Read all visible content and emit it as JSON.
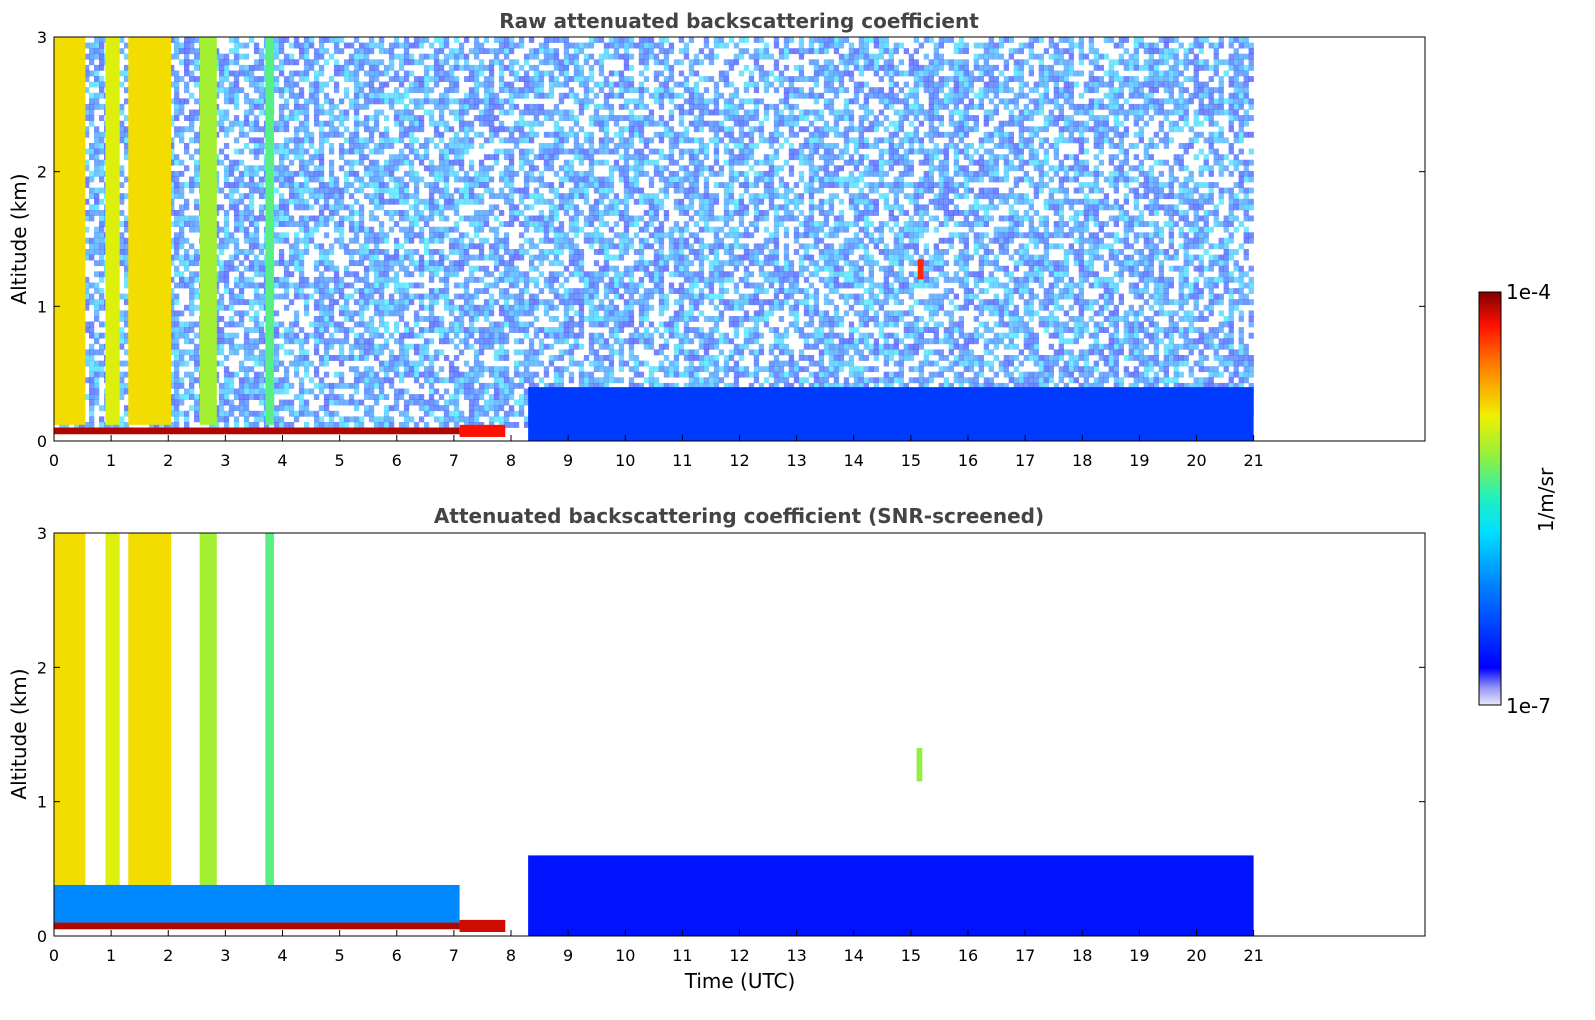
{
  "chart_data": [
    {
      "type": "heatmap",
      "id": "raw",
      "title": "Raw attenuated backscattering coefficient",
      "xlabel": "",
      "ylabel": "Altitude (km)",
      "xlim": [
        0,
        24
      ],
      "ylim": [
        0,
        3
      ],
      "xticks": [
        "0",
        "1",
        "2",
        "3",
        "4",
        "5",
        "6",
        "7",
        "8",
        "9",
        "10",
        "11",
        "12",
        "13",
        "14",
        "15",
        "16",
        "17",
        "18",
        "19",
        "20",
        "21"
      ],
      "yticks": [
        "0",
        "1",
        "2",
        "3"
      ],
      "data_extent_hours": 21,
      "regions": [
        {
          "x": [
            0,
            0.55
          ],
          "y": [
            0.12,
            3
          ],
          "level": 0.72
        },
        {
          "x": [
            0.9,
            1.15
          ],
          "y": [
            0.12,
            3
          ],
          "level": 0.68
        },
        {
          "x": [
            1.3,
            2.05
          ],
          "y": [
            0.12,
            3
          ],
          "level": 0.72
        },
        {
          "x": [
            2.55,
            2.85
          ],
          "y": [
            0.12,
            3
          ],
          "level": 0.62
        },
        {
          "x": [
            3.7,
            3.85
          ],
          "y": [
            0.12,
            3
          ],
          "level": 0.55
        },
        {
          "x": [
            0,
            7.1
          ],
          "y": [
            0.05,
            0.1
          ],
          "level": 0.97
        },
        {
          "x": [
            7.1,
            7.9
          ],
          "y": [
            0.03,
            0.12
          ],
          "level": 0.92
        },
        {
          "x": [
            8.3,
            21
          ],
          "y": [
            0,
            0.4
          ],
          "level": 0.18
        },
        {
          "x": [
            15.12,
            15.22
          ],
          "y": [
            1.2,
            1.35
          ],
          "level": 0.9
        }
      ],
      "noise_region": {
        "x": [
          0,
          21
        ],
        "y": [
          0.1,
          3
        ]
      }
    },
    {
      "type": "heatmap",
      "id": "screened",
      "title": "Attenuated backscattering coefficient (SNR-screened)",
      "xlabel": "Time (UTC)",
      "ylabel": "Altitude (km)",
      "xlim": [
        0,
        24
      ],
      "ylim": [
        0,
        3
      ],
      "xticks": [
        "0",
        "1",
        "2",
        "3",
        "4",
        "5",
        "6",
        "7",
        "8",
        "9",
        "10",
        "11",
        "12",
        "13",
        "14",
        "15",
        "16",
        "17",
        "18",
        "19",
        "20",
        "21"
      ],
      "yticks": [
        "0",
        "1",
        "2",
        "3"
      ],
      "data_extent_hours": 21,
      "regions": [
        {
          "x": [
            0,
            0.55
          ],
          "y": [
            0.12,
            3
          ],
          "level": 0.72
        },
        {
          "x": [
            0.9,
            1.15
          ],
          "y": [
            0.12,
            3
          ],
          "level": 0.68
        },
        {
          "x": [
            1.3,
            2.05
          ],
          "y": [
            0.12,
            3
          ],
          "level": 0.72
        },
        {
          "x": [
            2.55,
            2.85
          ],
          "y": [
            0.12,
            3
          ],
          "level": 0.62
        },
        {
          "x": [
            3.7,
            3.85
          ],
          "y": [
            0.12,
            3
          ],
          "level": 0.55
        },
        {
          "x": [
            0,
            7.1
          ],
          "y": [
            0.1,
            0.38
          ],
          "level": 0.3
        },
        {
          "x": [
            0,
            7.1
          ],
          "y": [
            0.05,
            0.1
          ],
          "level": 0.97
        },
        {
          "x": [
            7.1,
            7.9
          ],
          "y": [
            0.03,
            0.12
          ],
          "level": 0.95
        },
        {
          "x": [
            8.3,
            21
          ],
          "y": [
            0,
            0.6
          ],
          "level": 0.12
        },
        {
          "x": [
            15.1,
            15.2
          ],
          "y": [
            1.15,
            1.4
          ],
          "level": 0.6
        }
      ]
    }
  ],
  "colorbar": {
    "label": "1/m/sr",
    "max_label": "1e-4",
    "min_label": "1e-7",
    "colormap": "jet",
    "scale": "log",
    "range": [
      1e-07,
      0.0001
    ]
  }
}
